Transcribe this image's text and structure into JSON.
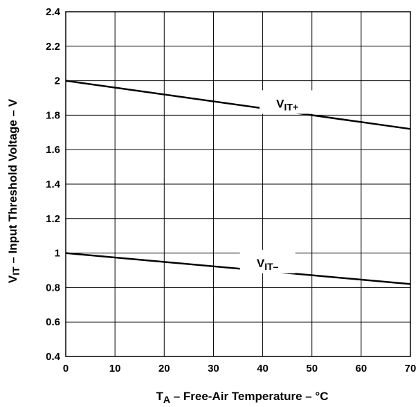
{
  "chart_data": {
    "type": "line",
    "title": "",
    "xlabel": {
      "main": "T",
      "sub": "A",
      "rest": " – Free-Air Temperature – °C"
    },
    "ylabel": {
      "main": "V",
      "sub": "IT",
      "rest": " – Input Threshold Voltage – V"
    },
    "xlim": [
      0,
      70
    ],
    "ylim": [
      0.4,
      2.4
    ],
    "xticks": [
      "0",
      "10",
      "20",
      "30",
      "40",
      "50",
      "60",
      "70"
    ],
    "yticks": [
      "0.4",
      "0.6",
      "0.8",
      "1",
      "1.2",
      "1.4",
      "1.6",
      "1.8",
      "2",
      "2.2",
      "2.4"
    ],
    "grid": true,
    "series": [
      {
        "name": {
          "main": "V",
          "sub": "IT+"
        },
        "x": [
          0,
          70
        ],
        "y": [
          2.0,
          1.72
        ]
      },
      {
        "name": {
          "main": "V",
          "sub": "IT–"
        },
        "x": [
          0,
          70
        ],
        "y": [
          1.0,
          0.82
        ]
      }
    ]
  }
}
